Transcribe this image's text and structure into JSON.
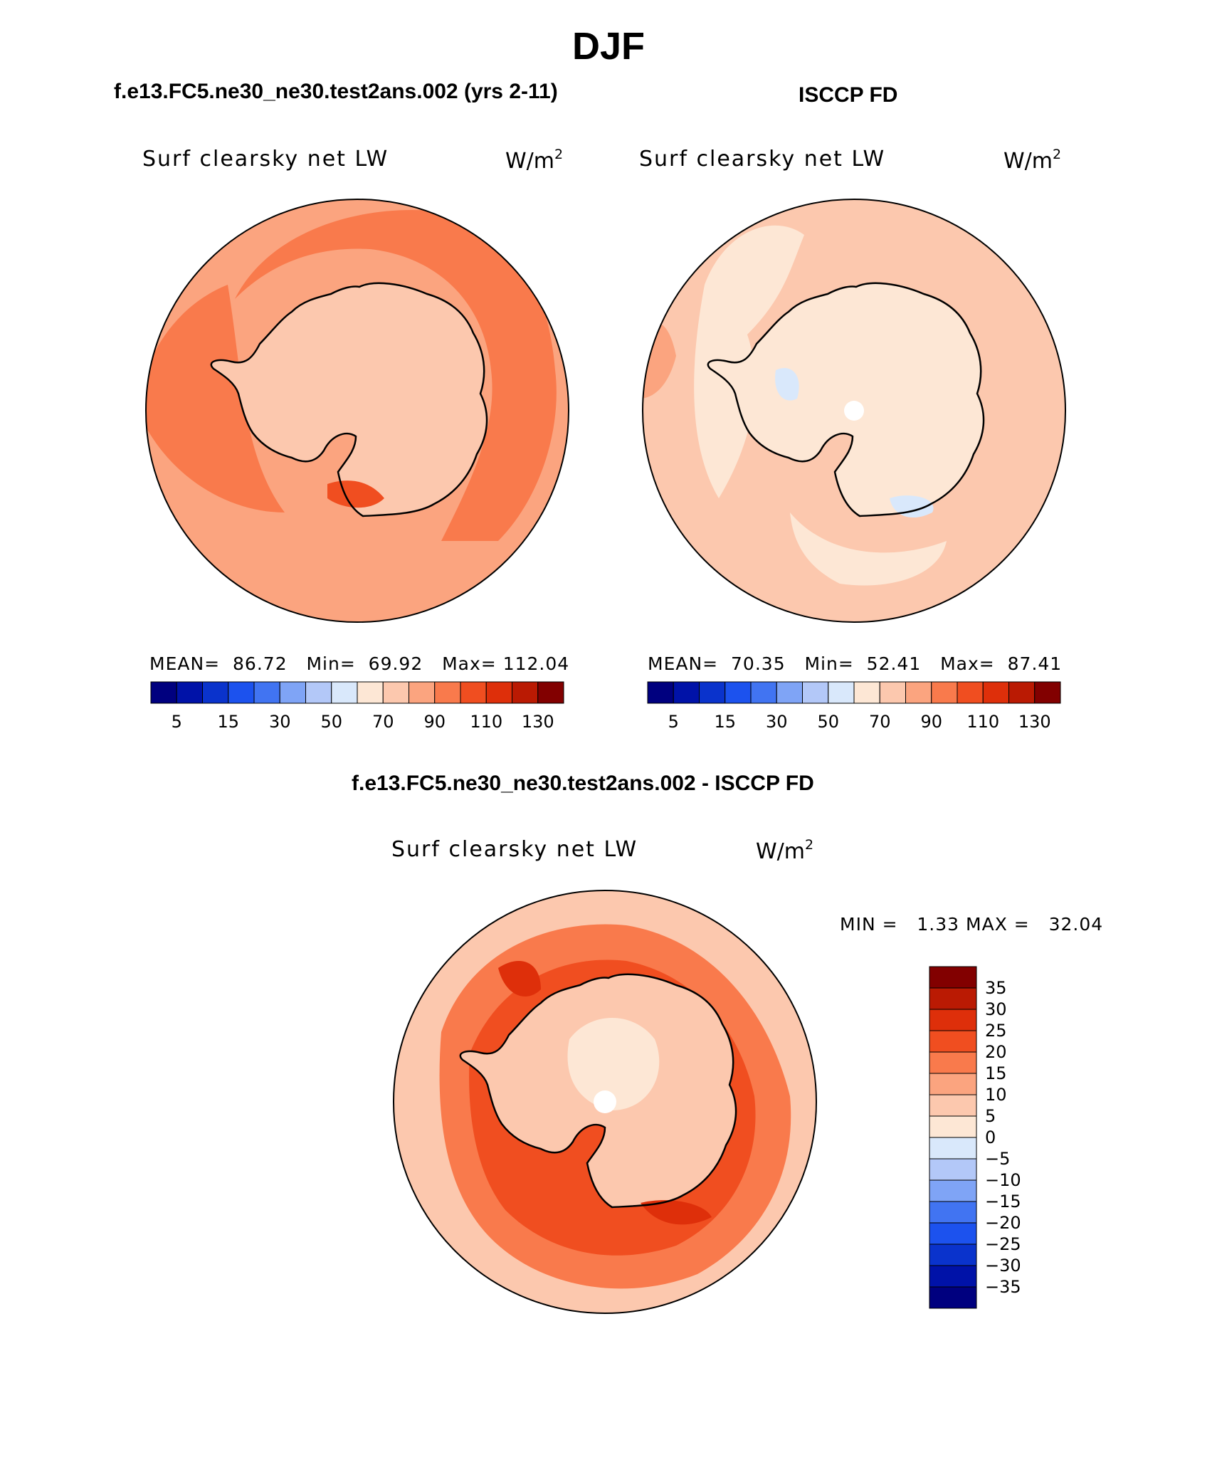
{
  "title": "DJF",
  "panels": [
    {
      "heading": "f.e13.FC5.ne30_ne30.test2ans.002 (yrs 2-11)",
      "variable": "Surf clearsky net LW",
      "units": "W/m",
      "units_exp": "2",
      "stats": {
        "mean_label": "MEAN=",
        "mean": "86.72",
        "min_label": "Min=",
        "min": "69.92",
        "max_label": "Max=",
        "max": "112.04"
      }
    },
    {
      "heading": "ISCCP FD",
      "variable": "Surf clearsky net LW",
      "units": "W/m",
      "units_exp": "2",
      "stats": {
        "mean_label": "MEAN=",
        "mean": "70.35",
        "min_label": "Min=",
        "min": "52.41",
        "max_label": "Max=",
        "max": "87.41"
      }
    },
    {
      "heading": "f.e13.FC5.ne30_ne30.test2ans.002 - ISCCP FD",
      "variable": "Surf clearsky net LW",
      "units": "W/m",
      "units_exp": "2",
      "stats": {
        "min_label": "MIN =",
        "min": "1.33",
        "max_label": "MAX =",
        "max": "32.04"
      }
    }
  ],
  "colorbar_horizontal": {
    "colors": [
      "#00007f",
      "#0012a8",
      "#0a33cc",
      "#1c52ee",
      "#4174f2",
      "#7fa4f6",
      "#b3c8f8",
      "#d9e8fb",
      "#fde7d5",
      "#fcc8ae",
      "#fba47f",
      "#f97a4c",
      "#f04e20",
      "#de2f0a",
      "#ba1a03",
      "#820000"
    ],
    "tick_labels": [
      "5",
      "15",
      "30",
      "50",
      "70",
      "90",
      "110",
      "130"
    ]
  },
  "colorbar_vertical": {
    "colors_top_to_bottom": [
      "#820000",
      "#ba1a03",
      "#de2f0a",
      "#f04e20",
      "#f97a4c",
      "#fba47f",
      "#fcc8ae",
      "#fde7d5",
      "#d9e8fb",
      "#b3c8f8",
      "#7fa4f6",
      "#4174f2",
      "#1c52ee",
      "#0a33cc",
      "#0012a8",
      "#00007f"
    ],
    "tick_labels": [
      "35",
      "30",
      "25",
      "20",
      "15",
      "10",
      "5",
      "0",
      "−5",
      "−10",
      "−15",
      "−20",
      "−25",
      "−30",
      "−35"
    ]
  }
}
